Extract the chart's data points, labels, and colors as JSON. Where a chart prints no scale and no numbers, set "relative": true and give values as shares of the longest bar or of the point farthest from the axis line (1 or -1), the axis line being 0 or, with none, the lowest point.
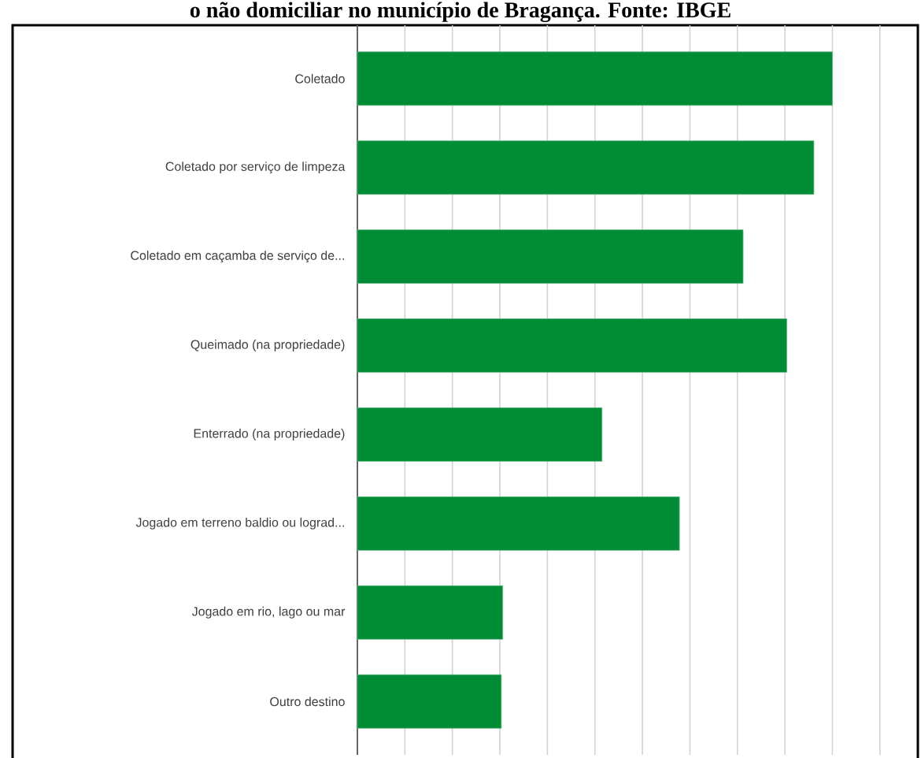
{
  "chart_data": {
    "type": "bar",
    "orientation": "horizontal",
    "relative": true,
    "grid": "x",
    "title": "o não domiciliar no município de Bragança. Fonte: IBGE",
    "categories": [
      "Coletado",
      "Coletado por serviço de limpeza",
      "Coletado em caçamba de serviço de...",
      "Queimado (na propriedade)",
      "Enterrado (na propriedade)",
      "Jogado em terreno baldio ou lograd...",
      "Jogado em rio, lago ou mar",
      "Outro destino"
    ],
    "values": [
      1,
      0.961,
      0.812,
      0.904,
      0.515,
      0.678,
      0.306,
      0.303
    ],
    "color": "#008c34"
  }
}
